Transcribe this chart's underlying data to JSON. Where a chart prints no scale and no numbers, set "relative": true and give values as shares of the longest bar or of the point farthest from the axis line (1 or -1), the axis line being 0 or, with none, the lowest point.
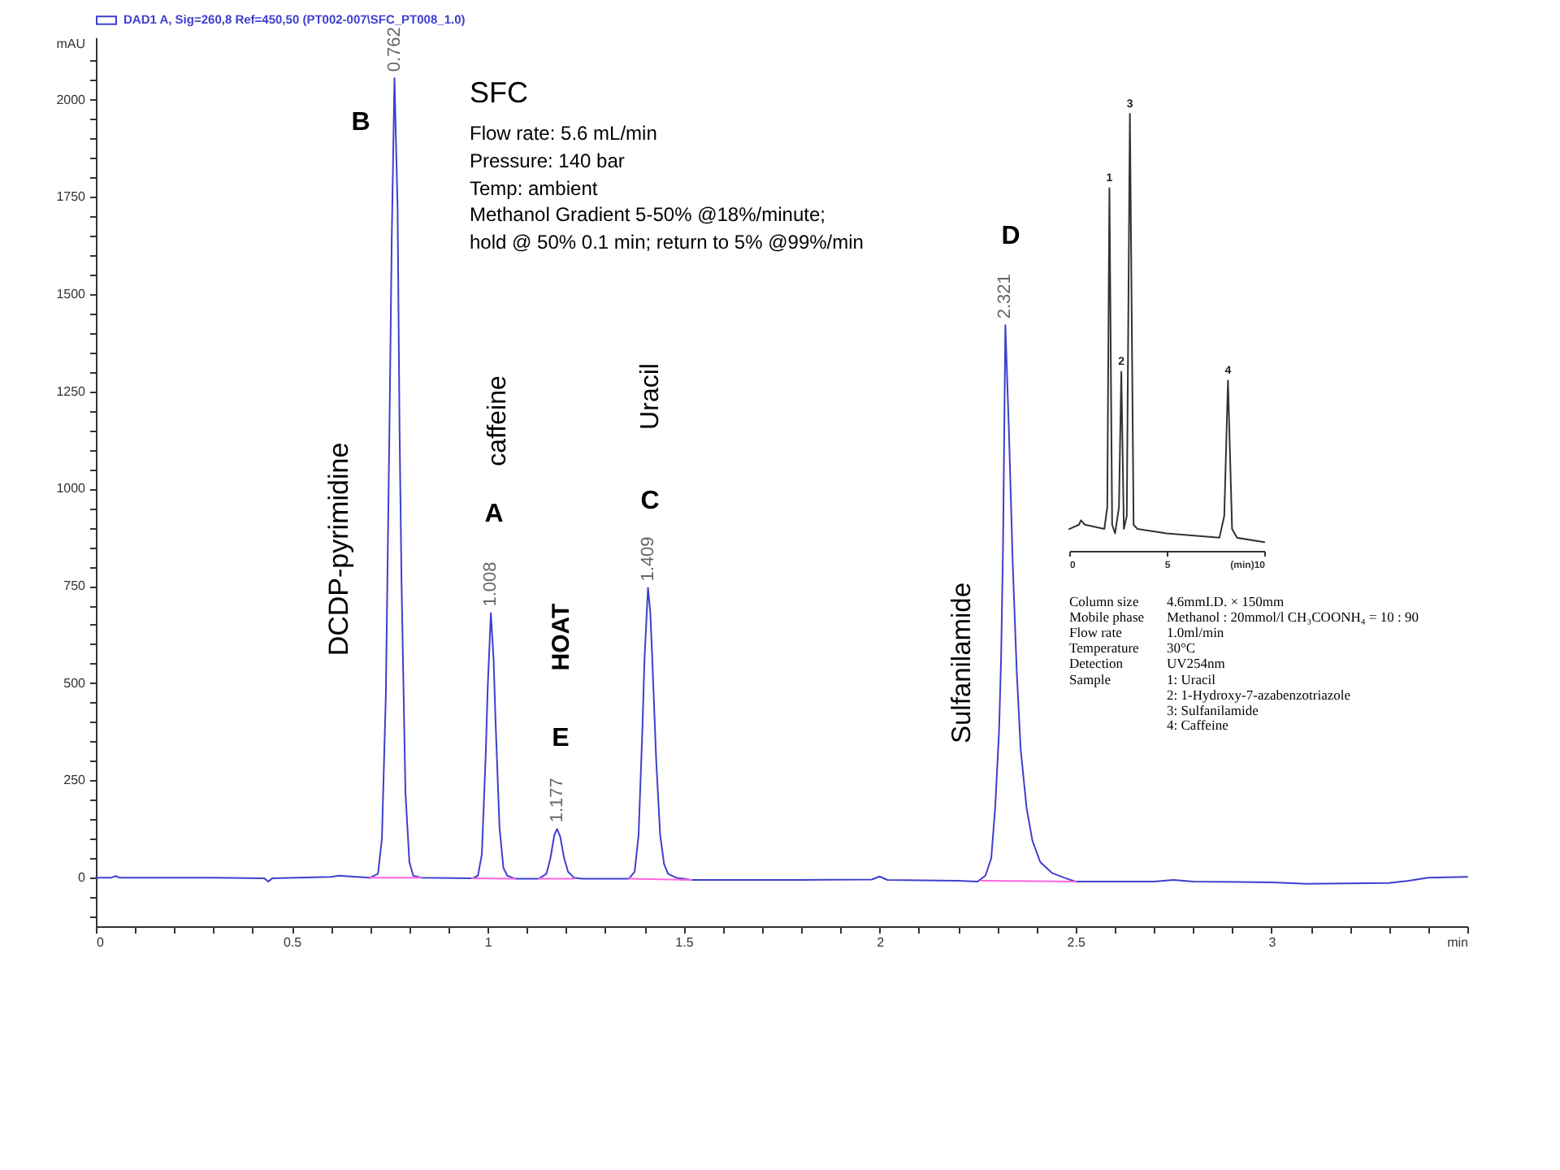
{
  "chart_data": [
    {
      "type": "line",
      "ylabel": "mAU",
      "x": [
        0,
        0.04,
        0.05,
        0.06,
        0.3,
        0.43,
        0.44,
        0.45,
        0.6,
        0.62,
        0.65,
        0.7,
        0.72,
        0.73,
        0.74,
        0.75,
        0.755,
        0.762,
        0.77,
        0.775,
        0.78,
        0.79,
        0.8,
        0.81,
        0.83,
        0.96,
        0.975,
        0.985,
        0.995,
        1.0,
        1.008,
        1.015,
        1.02,
        1.03,
        1.04,
        1.05,
        1.07,
        1.13,
        1.15,
        1.16,
        1.17,
        1.177,
        1.185,
        1.195,
        1.205,
        1.22,
        1.24,
        1.36,
        1.375,
        1.385,
        1.395,
        1.4,
        1.409,
        1.415,
        1.42,
        1.43,
        1.44,
        1.45,
        1.46,
        1.48,
        1.52,
        1.8,
        1.98,
        2.0,
        2.02,
        2.2,
        2.25,
        2.27,
        2.285,
        2.295,
        2.305,
        2.31,
        2.315,
        2.321,
        2.33,
        2.34,
        2.35,
        2.36,
        2.375,
        2.39,
        2.41,
        2.44,
        2.47,
        2.5,
        2.7,
        2.75,
        2.8,
        3.0,
        3.09,
        3.3,
        3.35,
        3.4,
        3.5
      ],
      "series": [
        {
          "name": "DAD1 A, Sig=260,8 Ref=450,50 (PT002-007\\SFC_PT008_1.0)",
          "color": "#3f3fcf",
          "values": [
            0,
            0,
            4,
            0,
            0,
            -2,
            -10,
            -2,
            2,
            5,
            3,
            0,
            10,
            100,
            470,
            1220,
            1640,
            2055,
            1720,
            1150,
            760,
            220,
            40,
            5,
            0,
            -2,
            5,
            60,
            320,
            490,
            680,
            560,
            400,
            130,
            25,
            5,
            -3,
            -3,
            10,
            50,
            110,
            125,
            105,
            50,
            15,
            0,
            -3,
            -3,
            15,
            110,
            390,
            560,
            745,
            680,
            560,
            300,
            110,
            35,
            10,
            0,
            -6,
            -6,
            -5,
            3,
            -6,
            -8,
            -10,
            5,
            50,
            180,
            380,
            560,
            850,
            1420,
            1150,
            800,
            530,
            330,
            180,
            95,
            40,
            12,
            0,
            -10,
            -10,
            -6,
            -10,
            -12,
            -16,
            -14,
            -8,
            0,
            2
          ]
        },
        {
          "color": "#ff66dd",
          "x": [
            0.7,
            0.83,
            0.9,
            0.96,
            1.07,
            1.1,
            1.13,
            1.22,
            1.3,
            1.36,
            1.52,
            2.0,
            2.26,
            2.5
          ],
          "values": [
            0,
            0,
            null,
            -2,
            -3,
            null,
            -3,
            -3,
            null,
            -3,
            -6,
            null,
            -8,
            -10
          ]
        }
      ],
      "xlim": [
        0,
        3.5
      ],
      "ylim": [
        -125,
        2160
      ],
      "xticks": [
        0,
        {
          "value": 0.1,
          "label": null
        },
        {
          "value": 0.2,
          "label": null
        },
        {
          "value": 0.3,
          "label": null
        },
        {
          "value": 0.4,
          "label": null
        },
        0.5,
        {
          "value": 0.6,
          "label": null
        },
        {
          "value": 0.7,
          "label": null
        },
        {
          "value": 0.8,
          "label": null
        },
        {
          "value": 0.9,
          "label": null
        },
        1,
        {
          "value": 1.1,
          "label": null
        },
        {
          "value": 1.2,
          "label": null
        },
        {
          "value": 1.3,
          "label": null
        },
        {
          "value": 1.4,
          "label": null
        },
        1.5,
        {
          "value": 1.6,
          "label": null
        },
        {
          "value": 1.7,
          "label": null
        },
        {
          "value": 1.8,
          "label": null
        },
        {
          "value": 1.9,
          "label": null
        },
        2,
        {
          "value": 2.1,
          "label": null
        },
        {
          "value": 2.2,
          "label": null
        },
        {
          "value": 2.3,
          "label": null
        },
        {
          "value": 2.4,
          "label": null
        },
        2.5,
        {
          "value": 2.6,
          "label": null
        },
        {
          "value": 2.7,
          "label": null
        },
        {
          "value": 2.8,
          "label": null
        },
        {
          "value": 2.9,
          "label": null
        },
        3,
        {
          "value": 3.1,
          "label": null
        },
        {
          "value": 3.2,
          "label": null
        },
        {
          "value": 3.3,
          "label": null
        },
        {
          "value": 3.4,
          "label": null
        },
        {
          "value": 3.5,
          "label": "min"
        }
      ],
      "yticks": [
        {
          "value": -100,
          "label": null
        },
        {
          "value": -50,
          "label": null
        },
        0,
        {
          "value": 50,
          "label": null
        },
        {
          "value": 100,
          "label": null
        },
        {
          "value": 150,
          "label": null
        },
        {
          "value": 200,
          "label": null
        },
        250,
        {
          "value": 300,
          "label": null
        },
        {
          "value": 350,
          "label": null
        },
        {
          "value": 400,
          "label": null
        },
        {
          "value": 450,
          "label": null
        },
        500,
        {
          "value": 550,
          "label": null
        },
        {
          "value": 600,
          "label": null
        },
        {
          "value": 650,
          "label": null
        },
        {
          "value": 700,
          "label": null
        },
        750,
        {
          "value": 800,
          "label": null
        },
        {
          "value": 850,
          "label": null
        },
        {
          "value": 900,
          "label": null
        },
        {
          "value": 950,
          "label": null
        },
        1000,
        {
          "value": 1050,
          "label": null
        },
        {
          "value": 1100,
          "label": null
        },
        {
          "value": 1150,
          "label": null
        },
        {
          "value": 1200,
          "label": null
        },
        1250,
        {
          "value": 1300,
          "label": null
        },
        {
          "value": 1350,
          "label": null
        },
        {
          "value": 1400,
          "label": null
        },
        {
          "value": 1450,
          "label": null
        },
        1500,
        {
          "value": 1550,
          "label": null
        },
        {
          "value": 1600,
          "label": null
        },
        {
          "value": 1650,
          "label": null
        },
        {
          "value": 1700,
          "label": null
        },
        1750,
        {
          "value": 1800,
          "label": null
        },
        {
          "value": 1850,
          "label": null
        },
        {
          "value": 1900,
          "label": null
        },
        {
          "value": 1950,
          "label": null
        },
        2000,
        {
          "value": 2050,
          "label": null
        },
        {
          "value": 2100,
          "label": null
        }
      ],
      "legend": "top left",
      "annotations": [
        "SFC",
        "Flow rate: 5.6 mL/min",
        "Pressure: 140 bar",
        "Temp: ambient",
        "Methanol Gradient 5-50% @18%/minute;",
        "hold @ 50% 0.1 min; return to 5% @99%/min",
        "B",
        "DCDP-pyrimidine",
        "A",
        "caffeine",
        "E",
        "HOAT",
        "C",
        "Uracil",
        "D",
        "Sulfanilamide",
        {
          "text": "0.762",
          "x": 0.762,
          "y": 2055
        },
        {
          "text": "1.008",
          "x": 1.008,
          "y": 680
        },
        {
          "text": "1.177",
          "x": 1.177,
          "y": 125
        },
        {
          "text": "1.409",
          "x": 1.409,
          "y": 745
        },
        {
          "text": "2.321",
          "x": 2.321,
          "y": 1420
        }
      ]
    },
    {
      "type": "line",
      "relative": true,
      "x": [
        0,
        0.5,
        0.6,
        0.8,
        1.8,
        1.95,
        2.06,
        2.2,
        2.35,
        2.55,
        2.67,
        2.8,
        2.95,
        3.11,
        3.3,
        3.5,
        5,
        7.7,
        7.95,
        8.14,
        8.35,
        8.6,
        10
      ],
      "series": [
        {
          "color": "#333333",
          "values": [
            0.05,
            0.06,
            0.07,
            0.06,
            0.05,
            0.1,
            0.83,
            0.06,
            0.04,
            0.1,
            0.41,
            0.05,
            0.08,
            1,
            0.06,
            0.05,
            0.04,
            0.03,
            0.08,
            0.39,
            0.05,
            0.03,
            0.02
          ]
        }
      ],
      "xlim": [
        0,
        10
      ],
      "xticks": [
        0,
        5,
        {
          "value": 10,
          "label": "(min)10"
        }
      ],
      "tick_labels": "x",
      "annotations": [
        {
          "text": "1",
          "x": 2.06,
          "y": 0.83
        },
        {
          "text": "2",
          "x": 2.67,
          "y": 0.41
        },
        {
          "text": "3",
          "x": 3.11,
          "y": 1
        },
        {
          "text": "4",
          "x": 8.14,
          "y": 0.39
        },
        "Column size",
        "4.6mmI.D. × 150mm",
        "Mobile phase",
        "Methanol : 20mmol/l CH₃COONH₄ = 10 : 90",
        "Flow rate",
        "1.0ml/min",
        "Temperature",
        "30°C",
        "Detection",
        "UV254nm",
        "Sample",
        "1: Uracil",
        "2: 1-Hydroxy-7-azabenzotriazole",
        "3: Sulfanilamide",
        "4: Caffeine"
      ]
    }
  ]
}
